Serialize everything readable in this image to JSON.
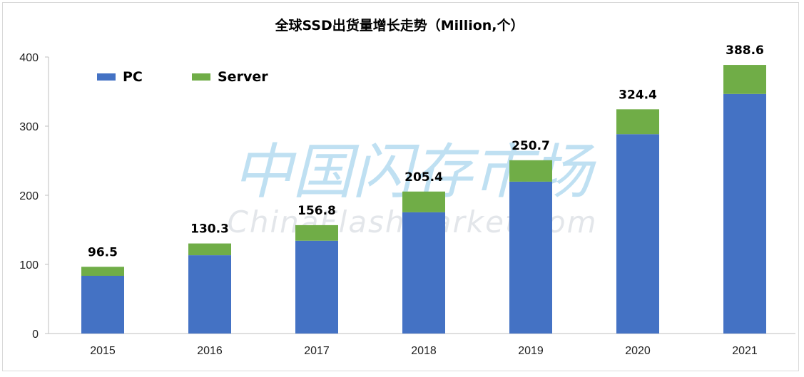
{
  "chart_data": {
    "type": "bar",
    "stacked": true,
    "title": "全球SSD出货量增长走势（Million,个）",
    "categories": [
      "2015",
      "2016",
      "2017",
      "2018",
      "2019",
      "2020",
      "2021"
    ],
    "series": [
      {
        "name": "PC",
        "color": "#4472c4",
        "values": [
          83.5,
          113.3,
          134.3,
          175.4,
          219.7,
          288.4,
          346.6
        ]
      },
      {
        "name": "Server",
        "color": "#70ad47",
        "values": [
          13.0,
          17.0,
          22.5,
          30.0,
          31.0,
          36.0,
          42.0
        ]
      }
    ],
    "totals": [
      "96.5",
      "130.3",
      "156.8",
      "205.4",
      "250.7",
      "324.4",
      "388.6"
    ],
    "ylim": [
      0,
      400
    ],
    "yticks": [
      "0",
      "100",
      "200",
      "300",
      "400"
    ],
    "xlabel": "",
    "ylabel": "",
    "grid": false,
    "legend_position": "top-left"
  },
  "watermark": {
    "chinese": "中国闪存市场",
    "english": "ChinaFlashMarket.com"
  }
}
